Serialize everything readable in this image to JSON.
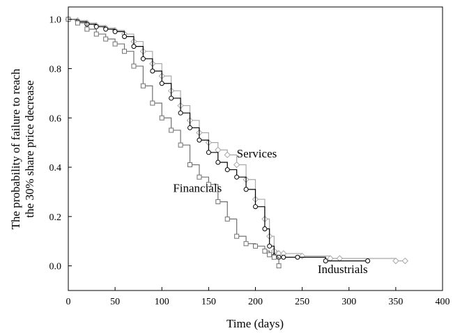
{
  "chart_data": {
    "type": "line",
    "subtype": "step (Kaplan-Meier survival curves with censoring markers)",
    "title": "",
    "xlabel": "Time (days)",
    "ylabel_lines": [
      "The probability of failure to reach",
      "the 30% share price decrease"
    ],
    "xlim": [
      0,
      400
    ],
    "ylim": [
      -0.1,
      1.05
    ],
    "xticks": [
      0,
      50,
      100,
      150,
      200,
      250,
      300,
      350,
      400
    ],
    "yticks": [
      0.0,
      0.2,
      0.4,
      0.6,
      0.8,
      1.0
    ],
    "ytick_labels": [
      "0.0",
      "0.2",
      "0.4",
      "0.6",
      "0.8",
      "1.0"
    ],
    "grid": false,
    "legend": "none (series labelled directly on the plot)",
    "series": [
      {
        "name": "Services",
        "color": "#a8a8a8",
        "marker": "diamond",
        "x": [
          0,
          10,
          20,
          30,
          40,
          50,
          60,
          70,
          80,
          90,
          100,
          110,
          120,
          130,
          140,
          150,
          160,
          170,
          180,
          190,
          200,
          210,
          215,
          220,
          225,
          230,
          250,
          280,
          290,
          350,
          360
        ],
        "y": [
          1.0,
          0.995,
          0.985,
          0.975,
          0.965,
          0.955,
          0.94,
          0.91,
          0.87,
          0.82,
          0.77,
          0.71,
          0.65,
          0.59,
          0.54,
          0.5,
          0.47,
          0.45,
          0.41,
          0.35,
          0.27,
          0.19,
          0.12,
          0.06,
          0.05,
          0.05,
          0.04,
          0.03,
          0.03,
          0.02,
          0.02
        ]
      },
      {
        "name": "Industrials",
        "color": "#000000",
        "marker": "circle",
        "x": [
          0,
          10,
          20,
          30,
          40,
          50,
          60,
          70,
          80,
          90,
          100,
          110,
          120,
          130,
          140,
          150,
          160,
          170,
          180,
          190,
          200,
          210,
          215,
          220,
          225,
          230,
          245,
          275,
          320
        ],
        "y": [
          1.0,
          0.99,
          0.98,
          0.97,
          0.96,
          0.95,
          0.93,
          0.89,
          0.84,
          0.79,
          0.74,
          0.68,
          0.62,
          0.56,
          0.51,
          0.46,
          0.42,
          0.39,
          0.36,
          0.31,
          0.24,
          0.15,
          0.08,
          0.04,
          0.035,
          0.035,
          0.035,
          0.02,
          0.02
        ]
      },
      {
        "name": "Financials",
        "color": "#707070",
        "marker": "square",
        "x": [
          0,
          10,
          20,
          30,
          40,
          50,
          60,
          70,
          80,
          90,
          100,
          110,
          120,
          130,
          140,
          150,
          160,
          170,
          180,
          190,
          200,
          210,
          215,
          220,
          225
        ],
        "y": [
          1.0,
          0.985,
          0.96,
          0.94,
          0.92,
          0.9,
          0.87,
          0.81,
          0.73,
          0.66,
          0.6,
          0.55,
          0.49,
          0.41,
          0.36,
          0.33,
          0.26,
          0.19,
          0.12,
          0.09,
          0.08,
          0.06,
          0.045,
          0.035,
          0.0
        ]
      }
    ],
    "annotations": [
      {
        "text": "Services",
        "x": 180,
        "y": 0.44
      },
      {
        "text": "Financials",
        "x": 138,
        "y": 0.3
      },
      {
        "text": "Industrials",
        "x": 320,
        "y": -0.03
      }
    ]
  }
}
